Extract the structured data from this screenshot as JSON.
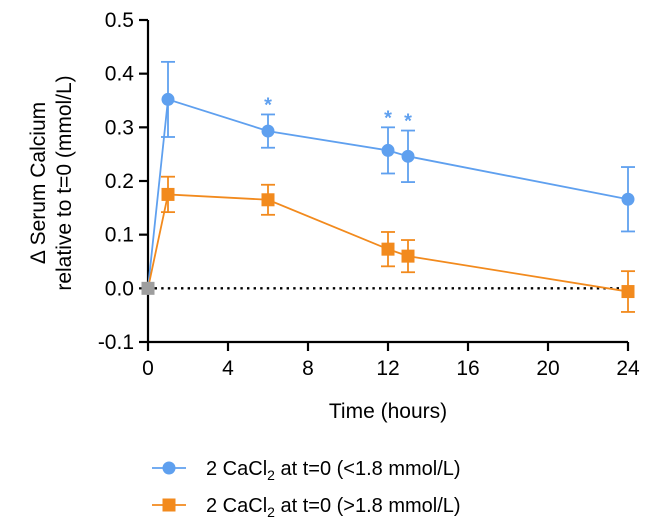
{
  "chart_data": {
    "type": "line",
    "xlabel": "Time (hours)",
    "ylabel_line1": "Δ Serum Calcium",
    "ylabel_line2": "relative to t=0 (mmol/L)",
    "xlim": [
      0,
      24
    ],
    "ylim": [
      -0.1,
      0.5
    ],
    "x_ticks": [
      0,
      4,
      8,
      12,
      16,
      20,
      24
    ],
    "x_tick_labels": [
      "0",
      "4",
      "8",
      "12",
      "16",
      "20",
      "24"
    ],
    "y_ticks": [
      -0.1,
      0.0,
      0.1,
      0.2,
      0.3,
      0.4,
      0.5
    ],
    "y_tick_labels": [
      "-0.1",
      "0.0",
      "0.1",
      "0.2",
      "0.3",
      "0.4",
      "0.5"
    ],
    "reference_line": {
      "y": 0.0,
      "style": "dotted"
    },
    "legend_position": "bottom",
    "series": [
      {
        "name_prefix": "2 CaCl",
        "name_subscript": "2",
        "name_suffix": " at t=0 (<1.8 mmol/L)",
        "color": "#5fa0ef",
        "marker": "circle",
        "x": [
          0,
          1,
          6,
          12,
          13,
          24
        ],
        "y": [
          0.0,
          0.352,
          0.293,
          0.257,
          0.246,
          0.166
        ],
        "error": [
          0,
          0.07,
          0.031,
          0.043,
          0.048,
          0.06
        ],
        "significant": [
          false,
          false,
          true,
          true,
          true,
          false
        ]
      },
      {
        "name_prefix": "2 CaCl",
        "name_subscript": "2",
        "name_suffix": " at t=0 (>1.8 mmol/L)",
        "color": "#f28a1d",
        "marker": "square",
        "x": [
          0,
          1,
          6,
          12,
          13,
          24
        ],
        "y": [
          0.0,
          0.175,
          0.165,
          0.073,
          0.06,
          -0.006
        ],
        "error": [
          0,
          0.033,
          0.028,
          0.032,
          0.03,
          0.038
        ],
        "significant": [
          false,
          false,
          false,
          false,
          false,
          false
        ]
      }
    ],
    "significance_symbol": "*"
  }
}
